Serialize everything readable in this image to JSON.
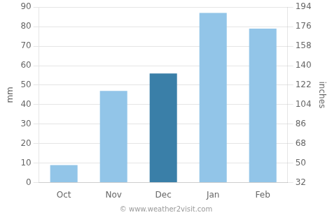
{
  "chart_data": {
    "type": "bar",
    "categories": [
      "Oct",
      "Nov",
      "Dec",
      "Jan",
      "Feb"
    ],
    "values": [
      9,
      47,
      56,
      87,
      79
    ],
    "colors": [
      "#92c5e8",
      "#92c5e8",
      "#3a7fa8",
      "#92c5e8",
      "#92c5e8"
    ],
    "ylabel": "mm",
    "ylim": [
      0,
      90
    ],
    "yticks": [
      0,
      10,
      20,
      30,
      40,
      50,
      60,
      70,
      80,
      90
    ],
    "y2label": "inches",
    "y2lim": [
      32,
      194
    ],
    "y2ticks": [
      32,
      50,
      68,
      86,
      104,
      122,
      140,
      158,
      176,
      194
    ],
    "grid": true,
    "annotations": [
      "© www.weather2visit.com"
    ]
  }
}
